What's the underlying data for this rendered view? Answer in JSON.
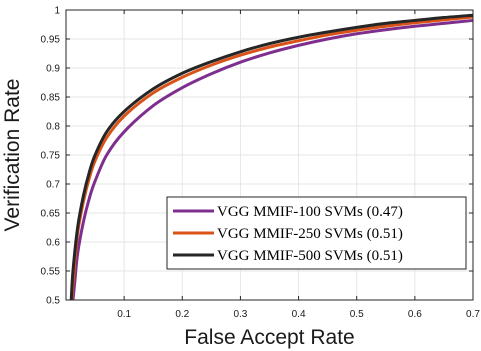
{
  "chart_data": {
    "type": "line",
    "xlabel": "False Accept Rate",
    "ylabel": "Verification Rate",
    "xlim": [
      0,
      0.7
    ],
    "ylim": [
      0.5,
      1
    ],
    "xticks": [
      0.1,
      0.2,
      0.3,
      0.4,
      0.5,
      0.6,
      0.7
    ],
    "xtick_labels": [
      "0.1",
      "0.2",
      "0.3",
      "0.4",
      "0.5",
      "0.6",
      "0.7"
    ],
    "yticks": [
      0.5,
      0.55,
      0.6,
      0.65,
      0.7,
      0.75,
      0.8,
      0.85,
      0.9,
      0.95,
      1
    ],
    "ytick_labels": [
      "0.5",
      "0.55",
      "0.6",
      "0.65",
      "0.7",
      "0.75",
      "0.8",
      "0.85",
      "0.9",
      "0.95",
      "1"
    ],
    "grid": true,
    "legend_position": "bottom-right",
    "series": [
      {
        "name": "VGG MMIF-100 SVMs (0.47)",
        "color": "#7E2F8E",
        "x": [
          0.012,
          0.015,
          0.02,
          0.03,
          0.04,
          0.05,
          0.07,
          0.1,
          0.15,
          0.2,
          0.25,
          0.3,
          0.35,
          0.4,
          0.45,
          0.5,
          0.55,
          0.6,
          0.65,
          0.7
        ],
        "y": [
          0.5,
          0.53,
          0.58,
          0.635,
          0.675,
          0.705,
          0.75,
          0.79,
          0.835,
          0.866,
          0.89,
          0.91,
          0.926,
          0.939,
          0.95,
          0.959,
          0.966,
          0.972,
          0.977,
          0.982
        ]
      },
      {
        "name": "VGG MMIF-250 SVMs (0.51)",
        "color": "#D95319",
        "x": [
          0.01,
          0.013,
          0.02,
          0.03,
          0.04,
          0.05,
          0.07,
          0.1,
          0.15,
          0.2,
          0.25,
          0.3,
          0.35,
          0.4,
          0.45,
          0.5,
          0.55,
          0.6,
          0.65,
          0.7
        ],
        "y": [
          0.5,
          0.54,
          0.615,
          0.67,
          0.71,
          0.74,
          0.78,
          0.817,
          0.857,
          0.884,
          0.905,
          0.922,
          0.936,
          0.947,
          0.957,
          0.965,
          0.972,
          0.978,
          0.983,
          0.988
        ]
      },
      {
        "name": "VGG MMIF-500 SVMs (0.51)",
        "color": "#262626",
        "x": [
          0.009,
          0.012,
          0.02,
          0.03,
          0.04,
          0.05,
          0.07,
          0.1,
          0.15,
          0.2,
          0.25,
          0.3,
          0.35,
          0.4,
          0.45,
          0.5,
          0.55,
          0.6,
          0.65,
          0.7
        ],
        "y": [
          0.5,
          0.55,
          0.625,
          0.68,
          0.72,
          0.75,
          0.79,
          0.825,
          0.864,
          0.891,
          0.911,
          0.928,
          0.942,
          0.953,
          0.962,
          0.97,
          0.977,
          0.982,
          0.987,
          0.991
        ]
      }
    ]
  }
}
